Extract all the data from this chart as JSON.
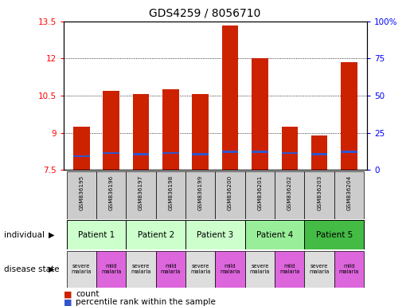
{
  "title": "GDS4259 / 8056710",
  "samples": [
    "GSM836195",
    "GSM836196",
    "GSM836197",
    "GSM836198",
    "GSM836199",
    "GSM836200",
    "GSM836201",
    "GSM836202",
    "GSM836203",
    "GSM836204"
  ],
  "count_values": [
    9.25,
    10.7,
    10.55,
    10.75,
    10.55,
    13.35,
    12.0,
    9.25,
    8.9,
    11.85
  ],
  "percentile_values": [
    8.05,
    8.18,
    8.12,
    8.18,
    8.12,
    8.22,
    8.22,
    8.18,
    8.12,
    8.22
  ],
  "ymin": 7.5,
  "ymax": 13.5,
  "y_ticks": [
    7.5,
    9.0,
    10.5,
    12.0,
    13.5
  ],
  "y_tick_labels": [
    "7.5",
    "9",
    "10.5",
    "12",
    "13.5"
  ],
  "right_y_ticks": [
    7.5,
    9.0,
    10.5,
    12.0,
    13.5
  ],
  "right_y_labels": [
    "0",
    "25",
    "50",
    "75",
    "100%"
  ],
  "bar_color": "#CC2200",
  "percentile_color": "#3355CC",
  "bar_width": 0.55,
  "patients": [
    {
      "label": "Patient 1",
      "start": 0,
      "end": 2,
      "color": "#CCFFCC"
    },
    {
      "label": "Patient 2",
      "start": 2,
      "end": 4,
      "color": "#CCFFCC"
    },
    {
      "label": "Patient 3",
      "start": 4,
      "end": 6,
      "color": "#CCFFCC"
    },
    {
      "label": "Patient 4",
      "start": 6,
      "end": 8,
      "color": "#99EE99"
    },
    {
      "label": "Patient 5",
      "start": 8,
      "end": 10,
      "color": "#44BB44"
    }
  ],
  "disease_states": [
    {
      "label": "severe\nmalaria",
      "col": 0,
      "color": "#DDDDDD"
    },
    {
      "label": "mild\nmalaria",
      "col": 1,
      "color": "#DD66DD"
    },
    {
      "label": "severe\nmalaria",
      "col": 2,
      "color": "#DDDDDD"
    },
    {
      "label": "mild\nmalaria",
      "col": 3,
      "color": "#DD66DD"
    },
    {
      "label": "severe\nmalaria",
      "col": 4,
      "color": "#DDDDDD"
    },
    {
      "label": "mild\nmalaria",
      "col": 5,
      "color": "#DD66DD"
    },
    {
      "label": "severe\nmalaria",
      "col": 6,
      "color": "#DDDDDD"
    },
    {
      "label": "mild\nmalaria",
      "col": 7,
      "color": "#DD66DD"
    },
    {
      "label": "severe\nmalaria",
      "col": 8,
      "color": "#DDDDDD"
    },
    {
      "label": "mild\nmalaria",
      "col": 9,
      "color": "#DD66DD"
    }
  ],
  "individual_label": "individual",
  "disease_label": "disease state",
  "legend_count": "count",
  "legend_percentile": "percentile rank within the sample",
  "title_fontsize": 10,
  "axis_fontsize": 7.5,
  "tick_fontsize": 7.5
}
